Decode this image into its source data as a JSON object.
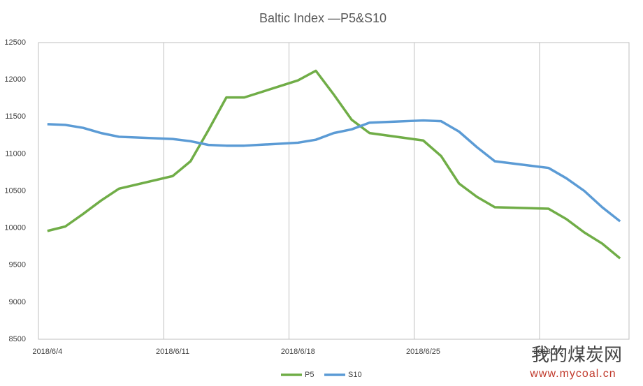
{
  "chart_data": {
    "type": "line",
    "title": "Baltic Index —P5&S10",
    "x": [
      "2018/6/4",
      "2018/6/5",
      "2018/6/6",
      "2018/6/7",
      "2018/6/8",
      "2018/6/11",
      "2018/6/12",
      "2018/6/13",
      "2018/6/14",
      "2018/6/15",
      "2018/6/18",
      "2018/6/19",
      "2018/6/20",
      "2018/6/21",
      "2018/6/22",
      "2018/6/25",
      "2018/6/26",
      "2018/6/27",
      "2018/6/28",
      "2018/6/29",
      "2018/7/2",
      "2018/7/3",
      "2018/7/4",
      "2018/7/5",
      "2018/7/6"
    ],
    "xlim": [
      "2018/6/4",
      "2018/7/6"
    ],
    "xticks": [
      "2018/6/4",
      "2018/6/11",
      "2018/6/18",
      "2018/6/25",
      "2018/7/2"
    ],
    "ylim": [
      8500,
      12500
    ],
    "yticks": [
      8500,
      9000,
      9500,
      10000,
      10500,
      11000,
      11500,
      12000,
      12500
    ],
    "grid": true,
    "legend": "bottom",
    "series": [
      {
        "name": "P5",
        "color": "#70ad47",
        "values": [
          9960,
          10020,
          10190,
          10370,
          10530,
          10700,
          10900,
          11320,
          11760,
          11760,
          11990,
          12120,
          11800,
          11460,
          11280,
          11180,
          10970,
          10600,
          10420,
          10280,
          10260,
          10120,
          9940,
          9790,
          9590
        ]
      },
      {
        "name": "S10",
        "color": "#5b9bd5",
        "values": [
          11400,
          11390,
          11350,
          11280,
          11230,
          11200,
          11170,
          11120,
          11110,
          11110,
          11150,
          11190,
          11280,
          11330,
          11420,
          11450,
          11440,
          11300,
          11090,
          10900,
          10810,
          10670,
          10500,
          10280,
          10090
        ]
      }
    ],
    "watermark": {
      "name": "我的煤炭网",
      "url": "www.mycoal.cn"
    }
  }
}
